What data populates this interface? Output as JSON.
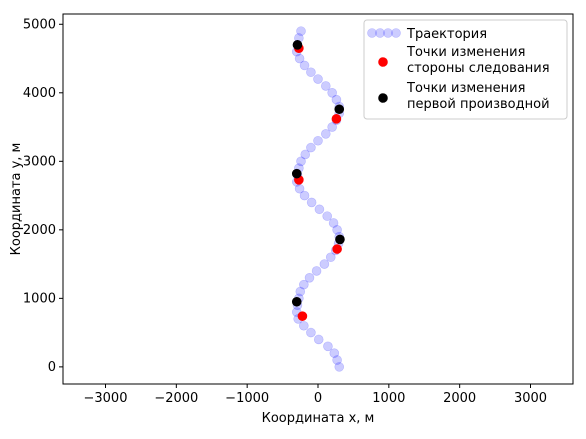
{
  "chart_data": {
    "type": "scatter",
    "xlabel": "Координата x, м",
    "ylabel": "Координата y, м",
    "xlim": [
      -3600,
      3600
    ],
    "ylim": [
      -250,
      5150
    ],
    "xticks": [
      -3000,
      -2000,
      -1000,
      0,
      1000,
      2000,
      3000
    ],
    "yticks": [
      0,
      1000,
      2000,
      3000,
      4000,
      5000
    ],
    "xtick_labels": [
      "−3000",
      "−2000",
      "−1000",
      "0",
      "1000",
      "2000",
      "3000"
    ],
    "ytick_labels": [
      "0",
      "1000",
      "2000",
      "3000",
      "4000",
      "5000"
    ],
    "legend_position": "top-right",
    "series": [
      {
        "name": "Траектория",
        "color": "#0000ff",
        "alpha": 0.2,
        "points": [
          [
            300,
            0
          ],
          [
            270,
            100
          ],
          [
            230,
            200
          ],
          [
            140,
            300
          ],
          [
            10,
            400
          ],
          [
            -100,
            500
          ],
          [
            -200,
            600
          ],
          [
            -280,
            700
          ],
          [
            -300,
            800
          ],
          [
            -290,
            900
          ],
          [
            -270,
            1000
          ],
          [
            -250,
            1100
          ],
          [
            -200,
            1200
          ],
          [
            -120,
            1300
          ],
          [
            -20,
            1400
          ],
          [
            90,
            1500
          ],
          [
            180,
            1600
          ],
          [
            250,
            1700
          ],
          [
            290,
            1800
          ],
          [
            300,
            1900
          ],
          [
            270,
            2000
          ],
          [
            220,
            2100
          ],
          [
            130,
            2200
          ],
          [
            20,
            2300
          ],
          [
            -90,
            2400
          ],
          [
            -190,
            2500
          ],
          [
            -260,
            2600
          ],
          [
            -300,
            2700
          ],
          [
            -290,
            2800
          ],
          [
            -270,
            2900
          ],
          [
            -240,
            3000
          ],
          [
            -180,
            3100
          ],
          [
            -100,
            3200
          ],
          [
            0,
            3300
          ],
          [
            110,
            3400
          ],
          [
            200,
            3500
          ],
          [
            260,
            3600
          ],
          [
            300,
            3700
          ],
          [
            300,
            3800
          ],
          [
            260,
            3900
          ],
          [
            200,
            4000
          ],
          [
            110,
            4100
          ],
          [
            0,
            4200
          ],
          [
            -100,
            4300
          ],
          [
            -190,
            4400
          ],
          [
            -260,
            4500
          ],
          [
            -300,
            4600
          ],
          [
            -290,
            4700
          ],
          [
            -270,
            4800
          ],
          [
            -240,
            4900
          ]
        ]
      },
      {
        "name": "Точки изменения\nстороны следования",
        "color": "#ff0000",
        "alpha": 1,
        "points": [
          [
            -220,
            740
          ],
          [
            270,
            1720
          ],
          [
            -270,
            2730
          ],
          [
            260,
            3620
          ],
          [
            -270,
            4650
          ]
        ]
      },
      {
        "name": "Точки изменения\nпервой производной",
        "color": "#000000",
        "alpha": 1,
        "points": [
          [
            -300,
            950
          ],
          [
            310,
            1860
          ],
          [
            -300,
            2820
          ],
          [
            300,
            3760
          ],
          [
            -290,
            4700
          ]
        ]
      }
    ]
  }
}
